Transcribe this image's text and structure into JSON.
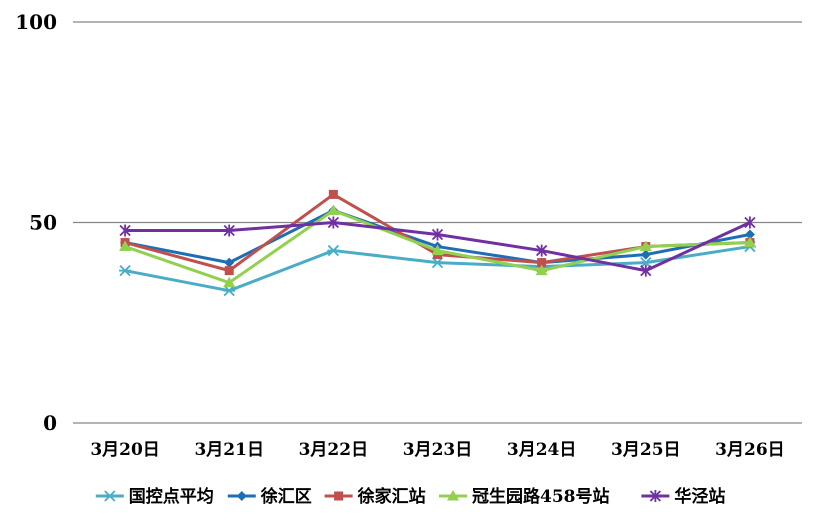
{
  "chart_data": {
    "type": "line",
    "title": "",
    "xlabel": "",
    "ylabel": "",
    "categories": [
      "3月20日",
      "3月21日",
      "3月22日",
      "3月23日",
      "3月24日",
      "3月25日",
      "3月26日"
    ],
    "yticks": [
      0,
      50,
      100
    ],
    "ylim": [
      0,
      100
    ],
    "grid": "horizontal-major",
    "legend": "bottom",
    "series": [
      {
        "name": "国控点平均",
        "marker": "asterisk",
        "color": "#4bacc6",
        "values": [
          38,
          33,
          43,
          40,
          39,
          40,
          44
        ]
      },
      {
        "name": "徐汇区",
        "marker": "diamond",
        "color": "#1f6eb5",
        "values": [
          45,
          40,
          53,
          44,
          40,
          42,
          47
        ]
      },
      {
        "name": "徐家汇站",
        "marker": "square",
        "color": "#c0504d",
        "values": [
          45,
          38,
          57,
          42,
          40,
          44,
          45
        ]
      },
      {
        "name": "冠生园路458号站",
        "marker": "triangle",
        "color": "#92d050",
        "values": [
          44,
          35,
          53,
          43,
          38,
          44,
          45
        ]
      },
      {
        "name": "华泾站",
        "marker": "star",
        "color": "#7030a0",
        "values": [
          48,
          48,
          50,
          47,
          43,
          38,
          50
        ]
      }
    ]
  }
}
